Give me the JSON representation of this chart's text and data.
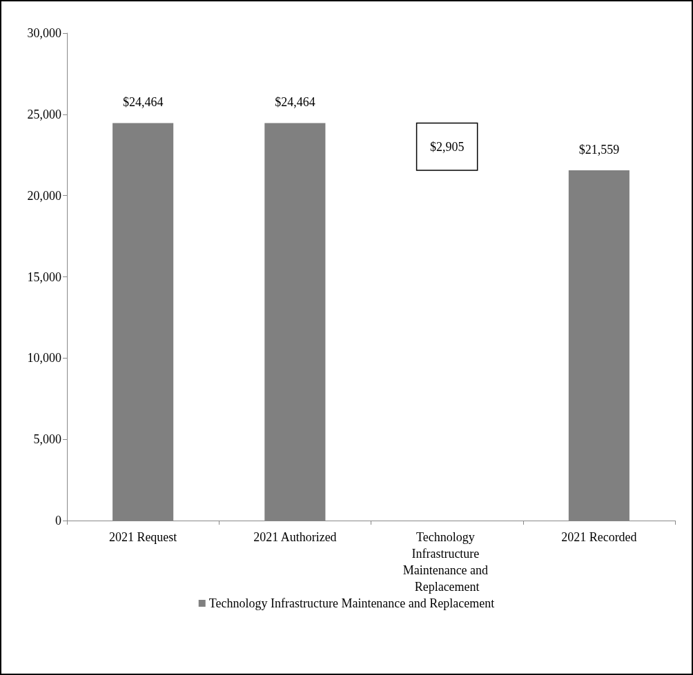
{
  "chart_data": {
    "type": "bar",
    "categories": [
      "2021 Request",
      "2021 Authorized",
      "Technology Infrastructure Maintenance and Replacement",
      "2021 Recorded"
    ],
    "series": [
      {
        "name": "Technology Infrastructure Maintenance and Replacement",
        "color": "#808080",
        "colors": [
          "#808080",
          "#808080",
          "#ffffff",
          "#808080"
        ],
        "values": [
          24464,
          24464,
          2905,
          21559
        ],
        "base": [
          0,
          0,
          21559,
          0
        ],
        "value_labels": [
          "$24,464",
          "$24,464",
          "$2,905",
          "$21,559"
        ]
      }
    ],
    "ylim": [
      0,
      30000
    ],
    "yticks": [
      0,
      {
        "value": 5000,
        "label": "5,000"
      },
      {
        "value": 10000,
        "label": "10,000"
      },
      {
        "value": 15000,
        "label": "15,000"
      },
      {
        "value": 20000,
        "label": "20,000"
      },
      {
        "value": 25000,
        "label": "25,000"
      },
      {
        "value": 30000,
        "label": "30,000"
      }
    ],
    "grid": false,
    "legend": "bottom"
  }
}
